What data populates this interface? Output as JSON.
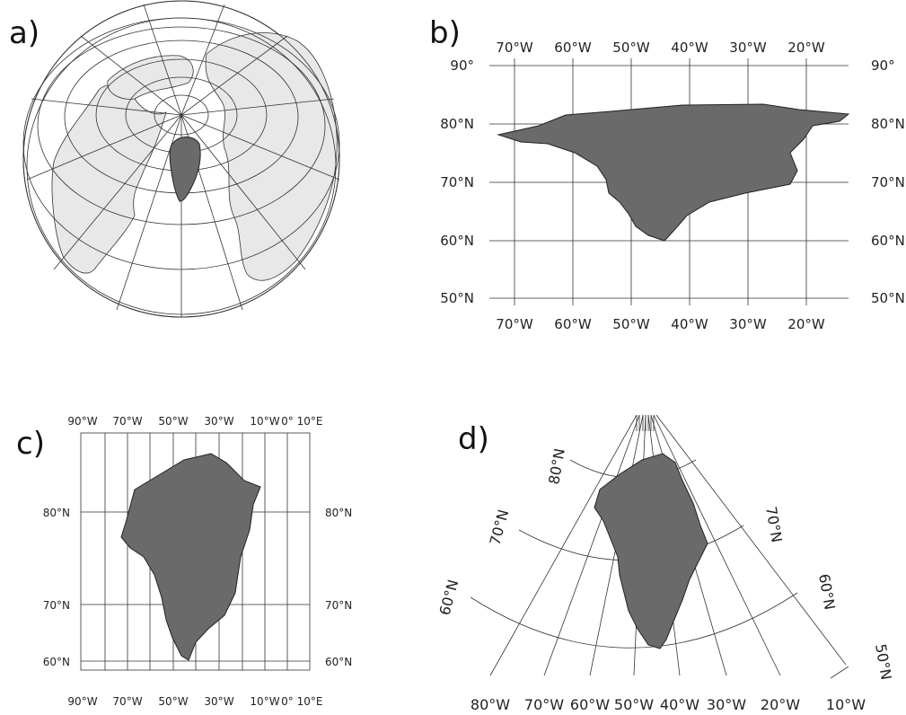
{
  "panels": {
    "a": {
      "label": "a)"
    },
    "b": {
      "label": "b)",
      "lon_labels": [
        "70°W",
        "60°W",
        "50°W",
        "40°W",
        "30°W",
        "20°W"
      ],
      "lat_labels": [
        "90°",
        "80°N",
        "70°N",
        "60°N",
        "50°N"
      ]
    },
    "c": {
      "label": "c)",
      "lon_labels": [
        "90°W",
        "70°W",
        "50°W",
        "30°W",
        "10°W",
        "0°",
        "10°E"
      ],
      "lat_labels": [
        "80°N",
        "70°N",
        "60°N"
      ]
    },
    "d": {
      "label": "d)",
      "lat_labels": [
        "80°N",
        "70°N",
        "60°N",
        "50°N"
      ],
      "lon_labels": [
        "80°W",
        "70°W",
        "60°W",
        "50°W",
        "40°W",
        "30°W",
        "20°W",
        "10°W"
      ]
    }
  },
  "colors": {
    "greenland": "#6a6a6a",
    "land": "#e8e8e8",
    "grid": "#333333"
  }
}
